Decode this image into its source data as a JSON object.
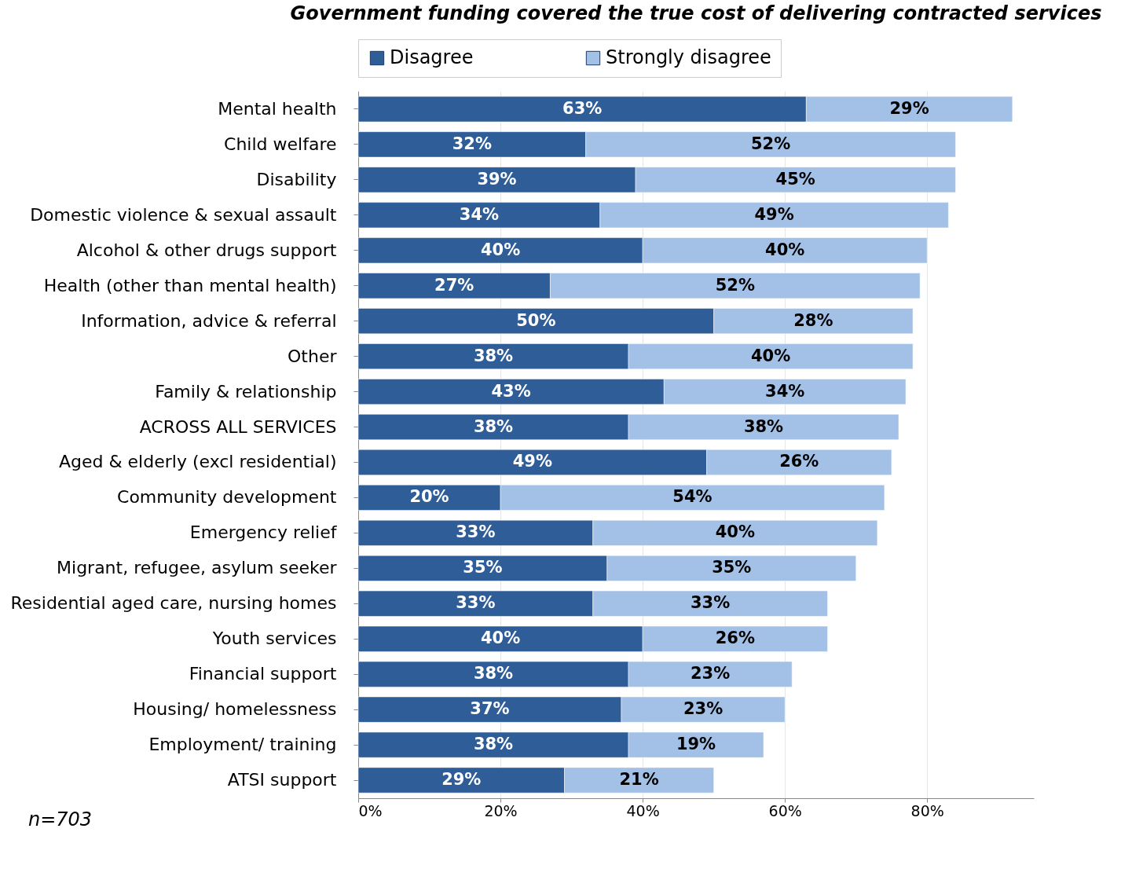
{
  "chart_data": {
    "type": "bar",
    "orientation": "horizontal",
    "stacked": true,
    "title": "Government funding covered the true cost of delivering contracted services",
    "categories": [
      "Mental health",
      "Child welfare",
      "Disability",
      "Domestic violence & sexual assault",
      "Alcohol & other drugs support",
      "Health (other than mental health)",
      "Information, advice & referral",
      "Other",
      "Family & relationship",
      "ACROSS ALL SERVICES",
      "Aged & elderly (excl residential)",
      "Community development",
      "Emergency relief",
      "Migrant, refugee, asylum seeker",
      "Residential aged care,  nursing homes",
      "Youth services",
      "Financial support",
      "Housing/ homelessness",
      "Employment/ training",
      "ATSI support"
    ],
    "series": [
      {
        "name": "Disagree",
        "color": "#2f5d98",
        "values": [
          63,
          32,
          39,
          34,
          40,
          27,
          50,
          38,
          43,
          38,
          49,
          20,
          33,
          35,
          33,
          40,
          38,
          37,
          38,
          29
        ],
        "value_labels": [
          "63%",
          "32%",
          "39%",
          "34%",
          "40%",
          "27%",
          "50%",
          "38%",
          "43%",
          "38%",
          "49%",
          "20%",
          "33%",
          "35%",
          "33%",
          "40%",
          "38%",
          "37%",
          "38%",
          "29%"
        ]
      },
      {
        "name": "Strongly disagree",
        "color": "#a3c1e6",
        "values": [
          29,
          52,
          45,
          49,
          40,
          52,
          28,
          40,
          34,
          38,
          26,
          54,
          40,
          35,
          33,
          26,
          23,
          23,
          19,
          21
        ],
        "value_labels": [
          "29%",
          "52%",
          "45%",
          "49%",
          "40%",
          "52%",
          "28%",
          "40%",
          "34%",
          "38%",
          "26%",
          "54%",
          "40%",
          "35%",
          "33%",
          "26%",
          "23%",
          "23%",
          "19%",
          "21%"
        ]
      }
    ],
    "xlim": [
      0,
      95
    ],
    "xticks": [
      {
        "value": 0,
        "label": "0%"
      },
      {
        "value": 20,
        "label": "20%"
      },
      {
        "value": 40,
        "label": "40%"
      },
      {
        "value": 60,
        "label": "60%"
      },
      {
        "value": 80,
        "label": "80%"
      }
    ],
    "grid": "x",
    "legend": "top",
    "annotations": [
      "n=703"
    ]
  }
}
